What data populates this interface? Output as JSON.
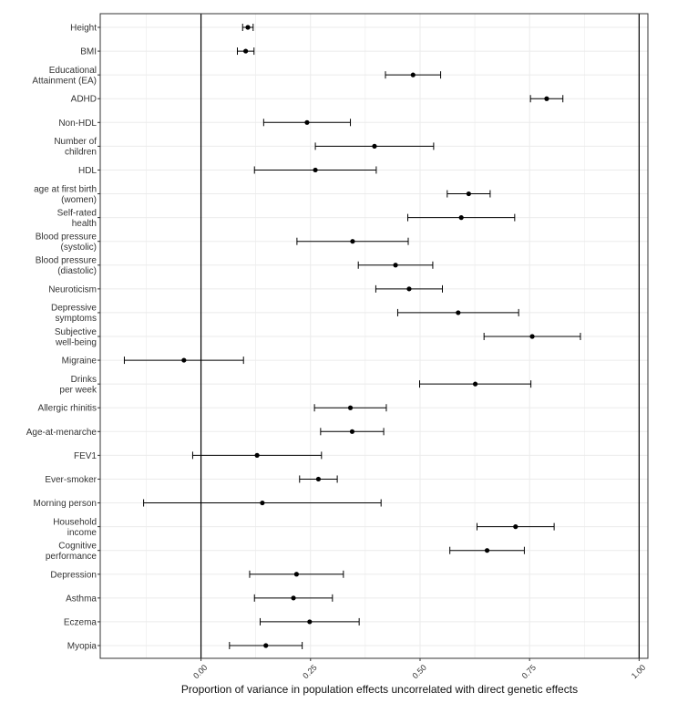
{
  "chart_data": {
    "type": "scatter",
    "subtype": "forest-plot-point-with-error-bars",
    "title": "",
    "xlabel": "Proportion of variance in population effects uncorrelated with direct genetic effects",
    "ylabel": "",
    "xlim": [
      -0.23,
      1.02
    ],
    "x_ticks": [
      "0.00",
      "0.25",
      "0.50",
      "0.75",
      "1.00"
    ],
    "x_tick_values": [
      0,
      0.25,
      0.5,
      0.75,
      1.0
    ],
    "reference_lines": [
      0,
      1
    ],
    "grid": true,
    "legend": "none",
    "colors": {
      "point": "#000000",
      "errorbar": "#000000",
      "reference_line": "#000000",
      "grid": "#ebebeb",
      "panel_border": "#333333"
    },
    "rows": [
      {
        "label": [
          "Height"
        ],
        "estimate": 0.107,
        "lower": 0.095,
        "upper": 0.119
      },
      {
        "label": [
          "BMI"
        ],
        "estimate": 0.102,
        "lower": 0.083,
        "upper": 0.121
      },
      {
        "label": [
          "Educational",
          "Attainment (EA)"
        ],
        "estimate": 0.484,
        "lower": 0.421,
        "upper": 0.547
      },
      {
        "label": [
          "ADHD"
        ],
        "estimate": 0.789,
        "lower": 0.752,
        "upper": 0.826
      },
      {
        "label": [
          "Non-HDL"
        ],
        "estimate": 0.242,
        "lower": 0.143,
        "upper": 0.341
      },
      {
        "label": [
          "Number of",
          "children"
        ],
        "estimate": 0.396,
        "lower": 0.261,
        "upper": 0.531
      },
      {
        "label": [
          "HDL"
        ],
        "estimate": 0.261,
        "lower": 0.122,
        "upper": 0.4
      },
      {
        "label": [
          "age at first birth",
          "(women)"
        ],
        "estimate": 0.611,
        "lower": 0.562,
        "upper": 0.66
      },
      {
        "label": [
          "Self-rated",
          "health"
        ],
        "estimate": 0.594,
        "lower": 0.472,
        "upper": 0.716
      },
      {
        "label": [
          "Blood pressure",
          "(systolic)"
        ],
        "estimate": 0.346,
        "lower": 0.219,
        "upper": 0.473
      },
      {
        "label": [
          "Blood pressure",
          "(diastolic)"
        ],
        "estimate": 0.444,
        "lower": 0.359,
        "upper": 0.529
      },
      {
        "label": [
          "Neuroticism"
        ],
        "estimate": 0.475,
        "lower": 0.399,
        "upper": 0.551
      },
      {
        "label": [
          "Depressive",
          "symptoms"
        ],
        "estimate": 0.587,
        "lower": 0.449,
        "upper": 0.725
      },
      {
        "label": [
          "Subjective",
          "well-being"
        ],
        "estimate": 0.756,
        "lower": 0.646,
        "upper": 0.866
      },
      {
        "label": [
          "Migraine"
        ],
        "estimate": -0.039,
        "lower": -0.175,
        "upper": 0.097
      },
      {
        "label": [
          "Drinks",
          "per week"
        ],
        "estimate": 0.626,
        "lower": 0.499,
        "upper": 0.753
      },
      {
        "label": [
          "Allergic rhinitis"
        ],
        "estimate": 0.341,
        "lower": 0.259,
        "upper": 0.423
      },
      {
        "label": [
          "Age-at-menarche"
        ],
        "estimate": 0.345,
        "lower": 0.273,
        "upper": 0.417
      },
      {
        "label": [
          "FEV1"
        ],
        "estimate": 0.128,
        "lower": -0.019,
        "upper": 0.275
      },
      {
        "label": [
          "Ever-smoker"
        ],
        "estimate": 0.268,
        "lower": 0.225,
        "upper": 0.311
      },
      {
        "label": [
          "Morning person"
        ],
        "estimate": 0.14,
        "lower": -0.131,
        "upper": 0.411
      },
      {
        "label": [
          "Household",
          "income"
        ],
        "estimate": 0.718,
        "lower": 0.63,
        "upper": 0.806
      },
      {
        "label": [
          "Cognitive",
          "performance"
        ],
        "estimate": 0.653,
        "lower": 0.568,
        "upper": 0.738
      },
      {
        "label": [
          "Depression"
        ],
        "estimate": 0.218,
        "lower": 0.111,
        "upper": 0.325
      },
      {
        "label": [
          "Asthma"
        ],
        "estimate": 0.211,
        "lower": 0.122,
        "upper": 0.3
      },
      {
        "label": [
          "Eczema"
        ],
        "estimate": 0.248,
        "lower": 0.135,
        "upper": 0.361
      },
      {
        "label": [
          "Myopia"
        ],
        "estimate": 0.148,
        "lower": 0.065,
        "upper": 0.231
      }
    ]
  }
}
